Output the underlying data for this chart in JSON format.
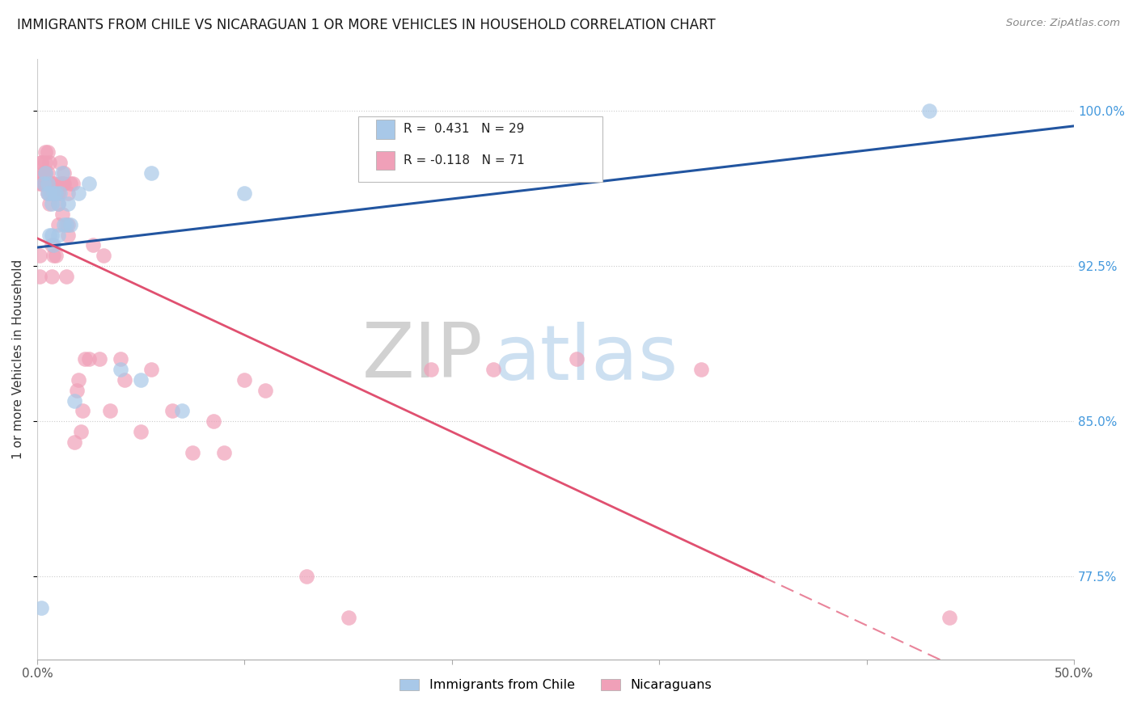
{
  "title": "IMMIGRANTS FROM CHILE VS NICARAGUAN 1 OR MORE VEHICLES IN HOUSEHOLD CORRELATION CHART",
  "source": "Source: ZipAtlas.com",
  "ylabel": "1 or more Vehicles in Household",
  "ytick_labels": [
    "77.5%",
    "85.0%",
    "92.5%",
    "100.0%"
  ],
  "ytick_values": [
    0.775,
    0.85,
    0.925,
    1.0
  ],
  "xmin": 0.0,
  "xmax": 0.5,
  "ymin": 0.735,
  "ymax": 1.025,
  "chile_R": 0.431,
  "chile_N": 29,
  "nicaragua_R": -0.118,
  "nicaragua_N": 71,
  "legend_label_chile": "Immigrants from Chile",
  "legend_label_nicaragua": "Nicaraguans",
  "chile_color": "#a8c8e8",
  "nicaragua_color": "#f0a0b8",
  "chile_line_color": "#2255a0",
  "nicaragua_line_color": "#e05070",
  "watermark_zip": "ZIP",
  "watermark_atlas": "atlas",
  "chile_x": [
    0.002,
    0.003,
    0.004,
    0.005,
    0.005,
    0.006,
    0.006,
    0.007,
    0.007,
    0.008,
    0.008,
    0.009,
    0.01,
    0.01,
    0.011,
    0.012,
    0.013,
    0.014,
    0.015,
    0.016,
    0.018,
    0.02,
    0.025,
    0.04,
    0.05,
    0.055,
    0.07,
    0.1,
    0.43
  ],
  "chile_y": [
    0.76,
    0.965,
    0.97,
    0.96,
    0.965,
    0.94,
    0.96,
    0.955,
    0.94,
    0.96,
    0.935,
    0.96,
    0.955,
    0.94,
    0.96,
    0.97,
    0.945,
    0.945,
    0.955,
    0.945,
    0.86,
    0.96,
    0.965,
    0.875,
    0.87,
    0.97,
    0.855,
    0.96,
    1.0
  ],
  "nicaragua_x": [
    0.001,
    0.001,
    0.002,
    0.002,
    0.003,
    0.003,
    0.004,
    0.004,
    0.005,
    0.005,
    0.005,
    0.006,
    0.006,
    0.007,
    0.007,
    0.007,
    0.008,
    0.008,
    0.009,
    0.009,
    0.01,
    0.01,
    0.011,
    0.011,
    0.012,
    0.012,
    0.013,
    0.013,
    0.014,
    0.015,
    0.015,
    0.016,
    0.017,
    0.018,
    0.019,
    0.02,
    0.021,
    0.022,
    0.023,
    0.025,
    0.027,
    0.03,
    0.032,
    0.035,
    0.04,
    0.042,
    0.05,
    0.055,
    0.065,
    0.075,
    0.085,
    0.09,
    0.1,
    0.11,
    0.13,
    0.15,
    0.19,
    0.22,
    0.26,
    0.32,
    0.44,
    0.001,
    0.002,
    0.003,
    0.004,
    0.005,
    0.006,
    0.008,
    0.01,
    0.012,
    0.015
  ],
  "nicaragua_y": [
    0.93,
    0.965,
    0.965,
    0.975,
    0.97,
    0.97,
    0.97,
    0.975,
    0.97,
    0.965,
    0.96,
    0.955,
    0.965,
    0.935,
    0.92,
    0.96,
    0.93,
    0.965,
    0.93,
    0.96,
    0.96,
    0.945,
    0.975,
    0.965,
    0.965,
    0.95,
    0.97,
    0.965,
    0.92,
    0.96,
    0.94,
    0.965,
    0.965,
    0.84,
    0.865,
    0.87,
    0.845,
    0.855,
    0.88,
    0.88,
    0.935,
    0.88,
    0.93,
    0.855,
    0.88,
    0.87,
    0.845,
    0.875,
    0.855,
    0.835,
    0.85,
    0.835,
    0.87,
    0.865,
    0.775,
    0.755,
    0.875,
    0.875,
    0.88,
    0.875,
    0.755,
    0.92,
    0.975,
    0.965,
    0.98,
    0.98,
    0.975,
    0.965,
    0.955,
    0.965,
    0.945
  ]
}
